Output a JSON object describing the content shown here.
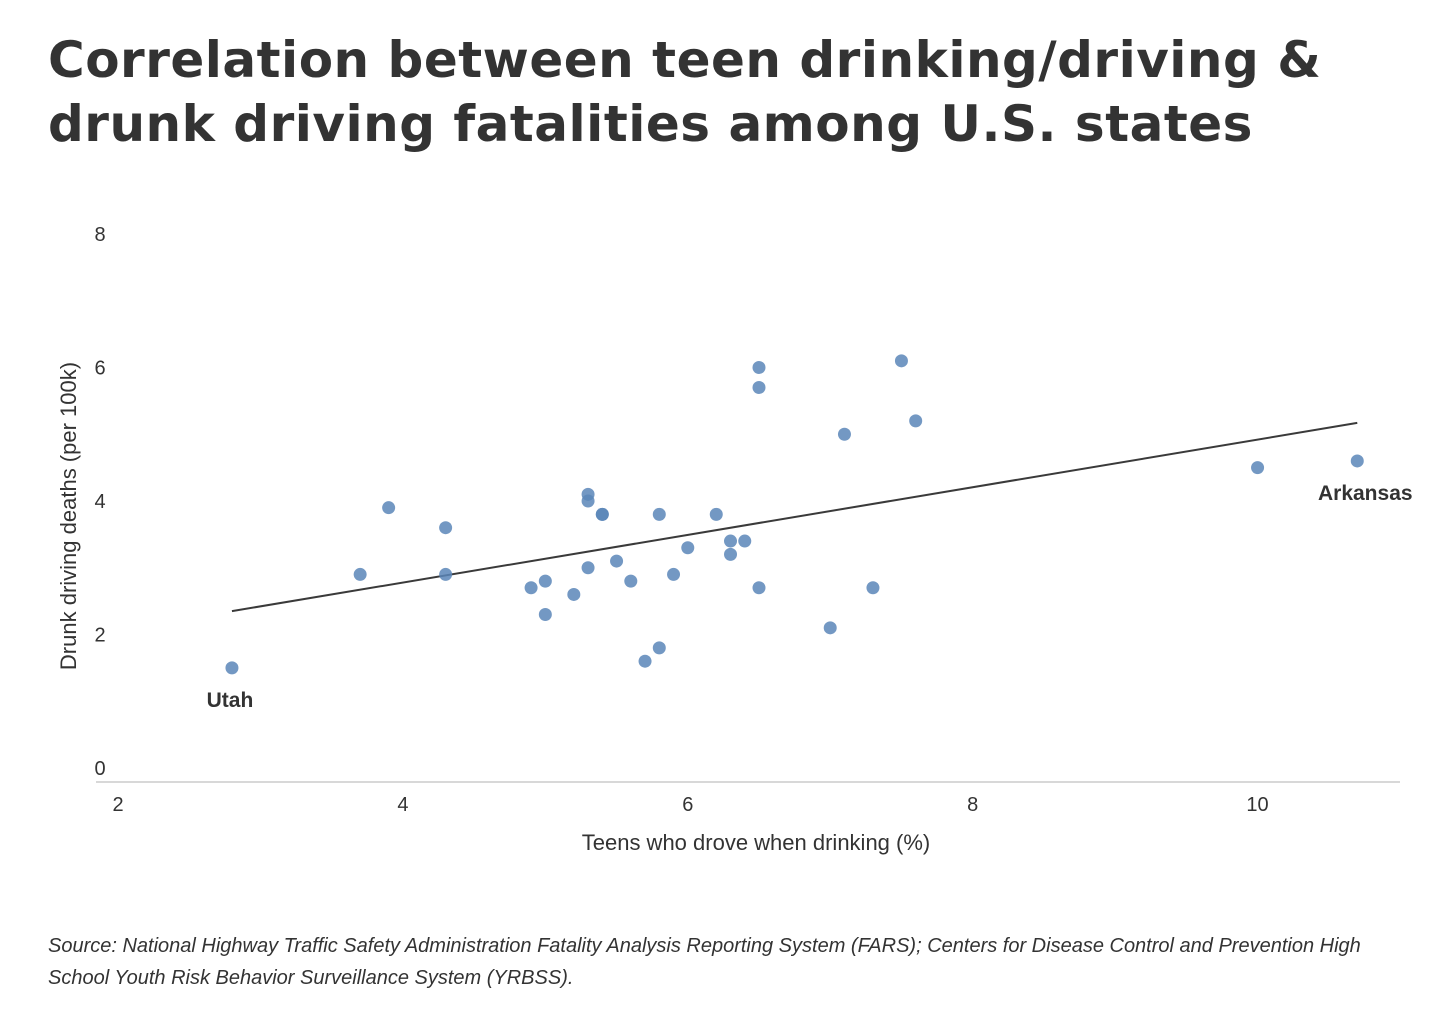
{
  "title": "Correlation between teen drinking/driving & drunk driving fatalities among U.S. states",
  "source": "Source: National Highway Traffic Safety Administration Fatality Analysis Reporting System (FARS); Centers for Disease Control and Prevention High School Youth Risk Behavior Surveillance System (YRBSS).",
  "colors": {
    "point": "#5b86b8",
    "trendline": "#3a3a3a",
    "axis": "#cccccc",
    "text": "#333333"
  },
  "chart_data": {
    "type": "scatter",
    "xlabel": "Teens who drove when drinking (%)",
    "ylabel": "Drunk driving deaths (per 100k)",
    "xlim": [
      2,
      11
    ],
    "ylim": [
      0,
      8
    ],
    "x_ticks": [
      2,
      4,
      6,
      8,
      10
    ],
    "y_ticks": [
      0,
      2,
      4,
      6,
      8
    ],
    "grid": false,
    "points": [
      {
        "x": 2.8,
        "y": 1.5
      },
      {
        "x": 3.7,
        "y": 2.9
      },
      {
        "x": 3.9,
        "y": 3.9
      },
      {
        "x": 4.3,
        "y": 3.6
      },
      {
        "x": 4.3,
        "y": 2.9
      },
      {
        "x": 4.9,
        "y": 2.7
      },
      {
        "x": 5.0,
        "y": 2.8
      },
      {
        "x": 5.0,
        "y": 2.3
      },
      {
        "x": 5.2,
        "y": 2.6
      },
      {
        "x": 5.3,
        "y": 4.1
      },
      {
        "x": 5.3,
        "y": 4.0
      },
      {
        "x": 5.3,
        "y": 3.0
      },
      {
        "x": 5.4,
        "y": 3.8
      },
      {
        "x": 5.4,
        "y": 3.8
      },
      {
        "x": 5.5,
        "y": 3.1
      },
      {
        "x": 5.6,
        "y": 2.8
      },
      {
        "x": 5.7,
        "y": 1.6
      },
      {
        "x": 5.8,
        "y": 3.8
      },
      {
        "x": 5.8,
        "y": 1.8
      },
      {
        "x": 5.9,
        "y": 2.9
      },
      {
        "x": 6.0,
        "y": 3.3
      },
      {
        "x": 6.2,
        "y": 3.8
      },
      {
        "x": 6.3,
        "y": 3.4
      },
      {
        "x": 6.3,
        "y": 3.2
      },
      {
        "x": 6.4,
        "y": 3.4
      },
      {
        "x": 6.5,
        "y": 6.0
      },
      {
        "x": 6.5,
        "y": 5.7
      },
      {
        "x": 6.5,
        "y": 2.7
      },
      {
        "x": 7.0,
        "y": 2.1
      },
      {
        "x": 7.1,
        "y": 5.0
      },
      {
        "x": 7.3,
        "y": 2.7
      },
      {
        "x": 7.5,
        "y": 6.1
      },
      {
        "x": 7.6,
        "y": 5.2
      },
      {
        "x": 10.0,
        "y": 4.5
      },
      {
        "x": 10.7,
        "y": 4.6
      }
    ],
    "trendline": {
      "x": [
        2.8,
        10.7
      ],
      "y": [
        2.35,
        5.17
      ]
    },
    "annotations": [
      {
        "label": "Utah",
        "x": 2.8,
        "y": 1.5,
        "position": "below"
      },
      {
        "label": "Arkansas",
        "x": 10.7,
        "y": 4.6,
        "position": "below"
      }
    ]
  }
}
